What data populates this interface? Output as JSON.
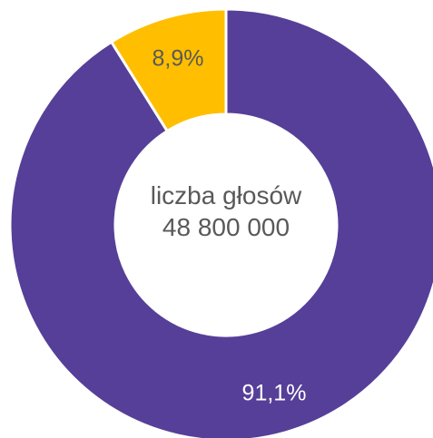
{
  "chart_data": {
    "type": "pie",
    "variant": "donut",
    "categories": [
      "",
      ""
    ],
    "values": [
      91.1,
      8.9
    ],
    "value_labels": [
      "91,1%",
      "8,9%"
    ],
    "colors": [
      "#563F98",
      "#FFBF00"
    ],
    "label_colors": [
      "#FFFFFF",
      "#595959"
    ],
    "center_label": {
      "line1": "liczba głosów",
      "line2": "48 800 000"
    },
    "title": "",
    "legend": "none",
    "start": "top",
    "direction": "clockwise"
  }
}
